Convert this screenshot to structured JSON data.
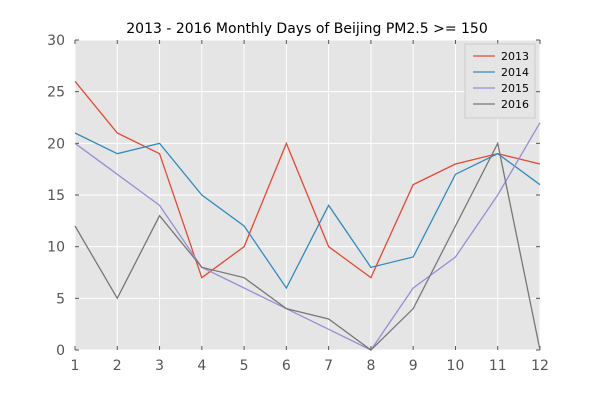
{
  "chart_data": {
    "type": "line",
    "title": "2013 - 2016 Monthly Days of Beijing PM2.5 >= 150",
    "xlabel": "",
    "ylabel": "",
    "x": [
      1,
      2,
      3,
      4,
      5,
      6,
      7,
      8,
      9,
      10,
      11,
      12
    ],
    "xlim": [
      1,
      12
    ],
    "ylim": [
      0,
      30
    ],
    "xticks": [
      1,
      2,
      3,
      4,
      5,
      6,
      7,
      8,
      9,
      10,
      11,
      12
    ],
    "yticks": [
      0,
      5,
      10,
      15,
      20,
      25,
      30
    ],
    "grid": true,
    "legend_position": "top-right",
    "series": [
      {
        "name": "2013",
        "color": "#e24a33",
        "values": [
          26,
          21,
          19,
          7,
          10,
          20,
          10,
          7,
          16,
          18,
          19,
          18
        ]
      },
      {
        "name": "2014",
        "color": "#348abd",
        "values": [
          21,
          19,
          20,
          15,
          12,
          6,
          14,
          8,
          9,
          17,
          19,
          16
        ]
      },
      {
        "name": "2015",
        "color": "#988ed5",
        "values": [
          20,
          17,
          14,
          8,
          6,
          4,
          2,
          0,
          6,
          9,
          15,
          22
        ]
      },
      {
        "name": "2016",
        "color": "#777777",
        "values": [
          12,
          5,
          13,
          8,
          7,
          4,
          3,
          0,
          4,
          12,
          20,
          0
        ]
      }
    ],
    "plot_background": "#e5e5e5",
    "grid_color": "#ffffff"
  }
}
